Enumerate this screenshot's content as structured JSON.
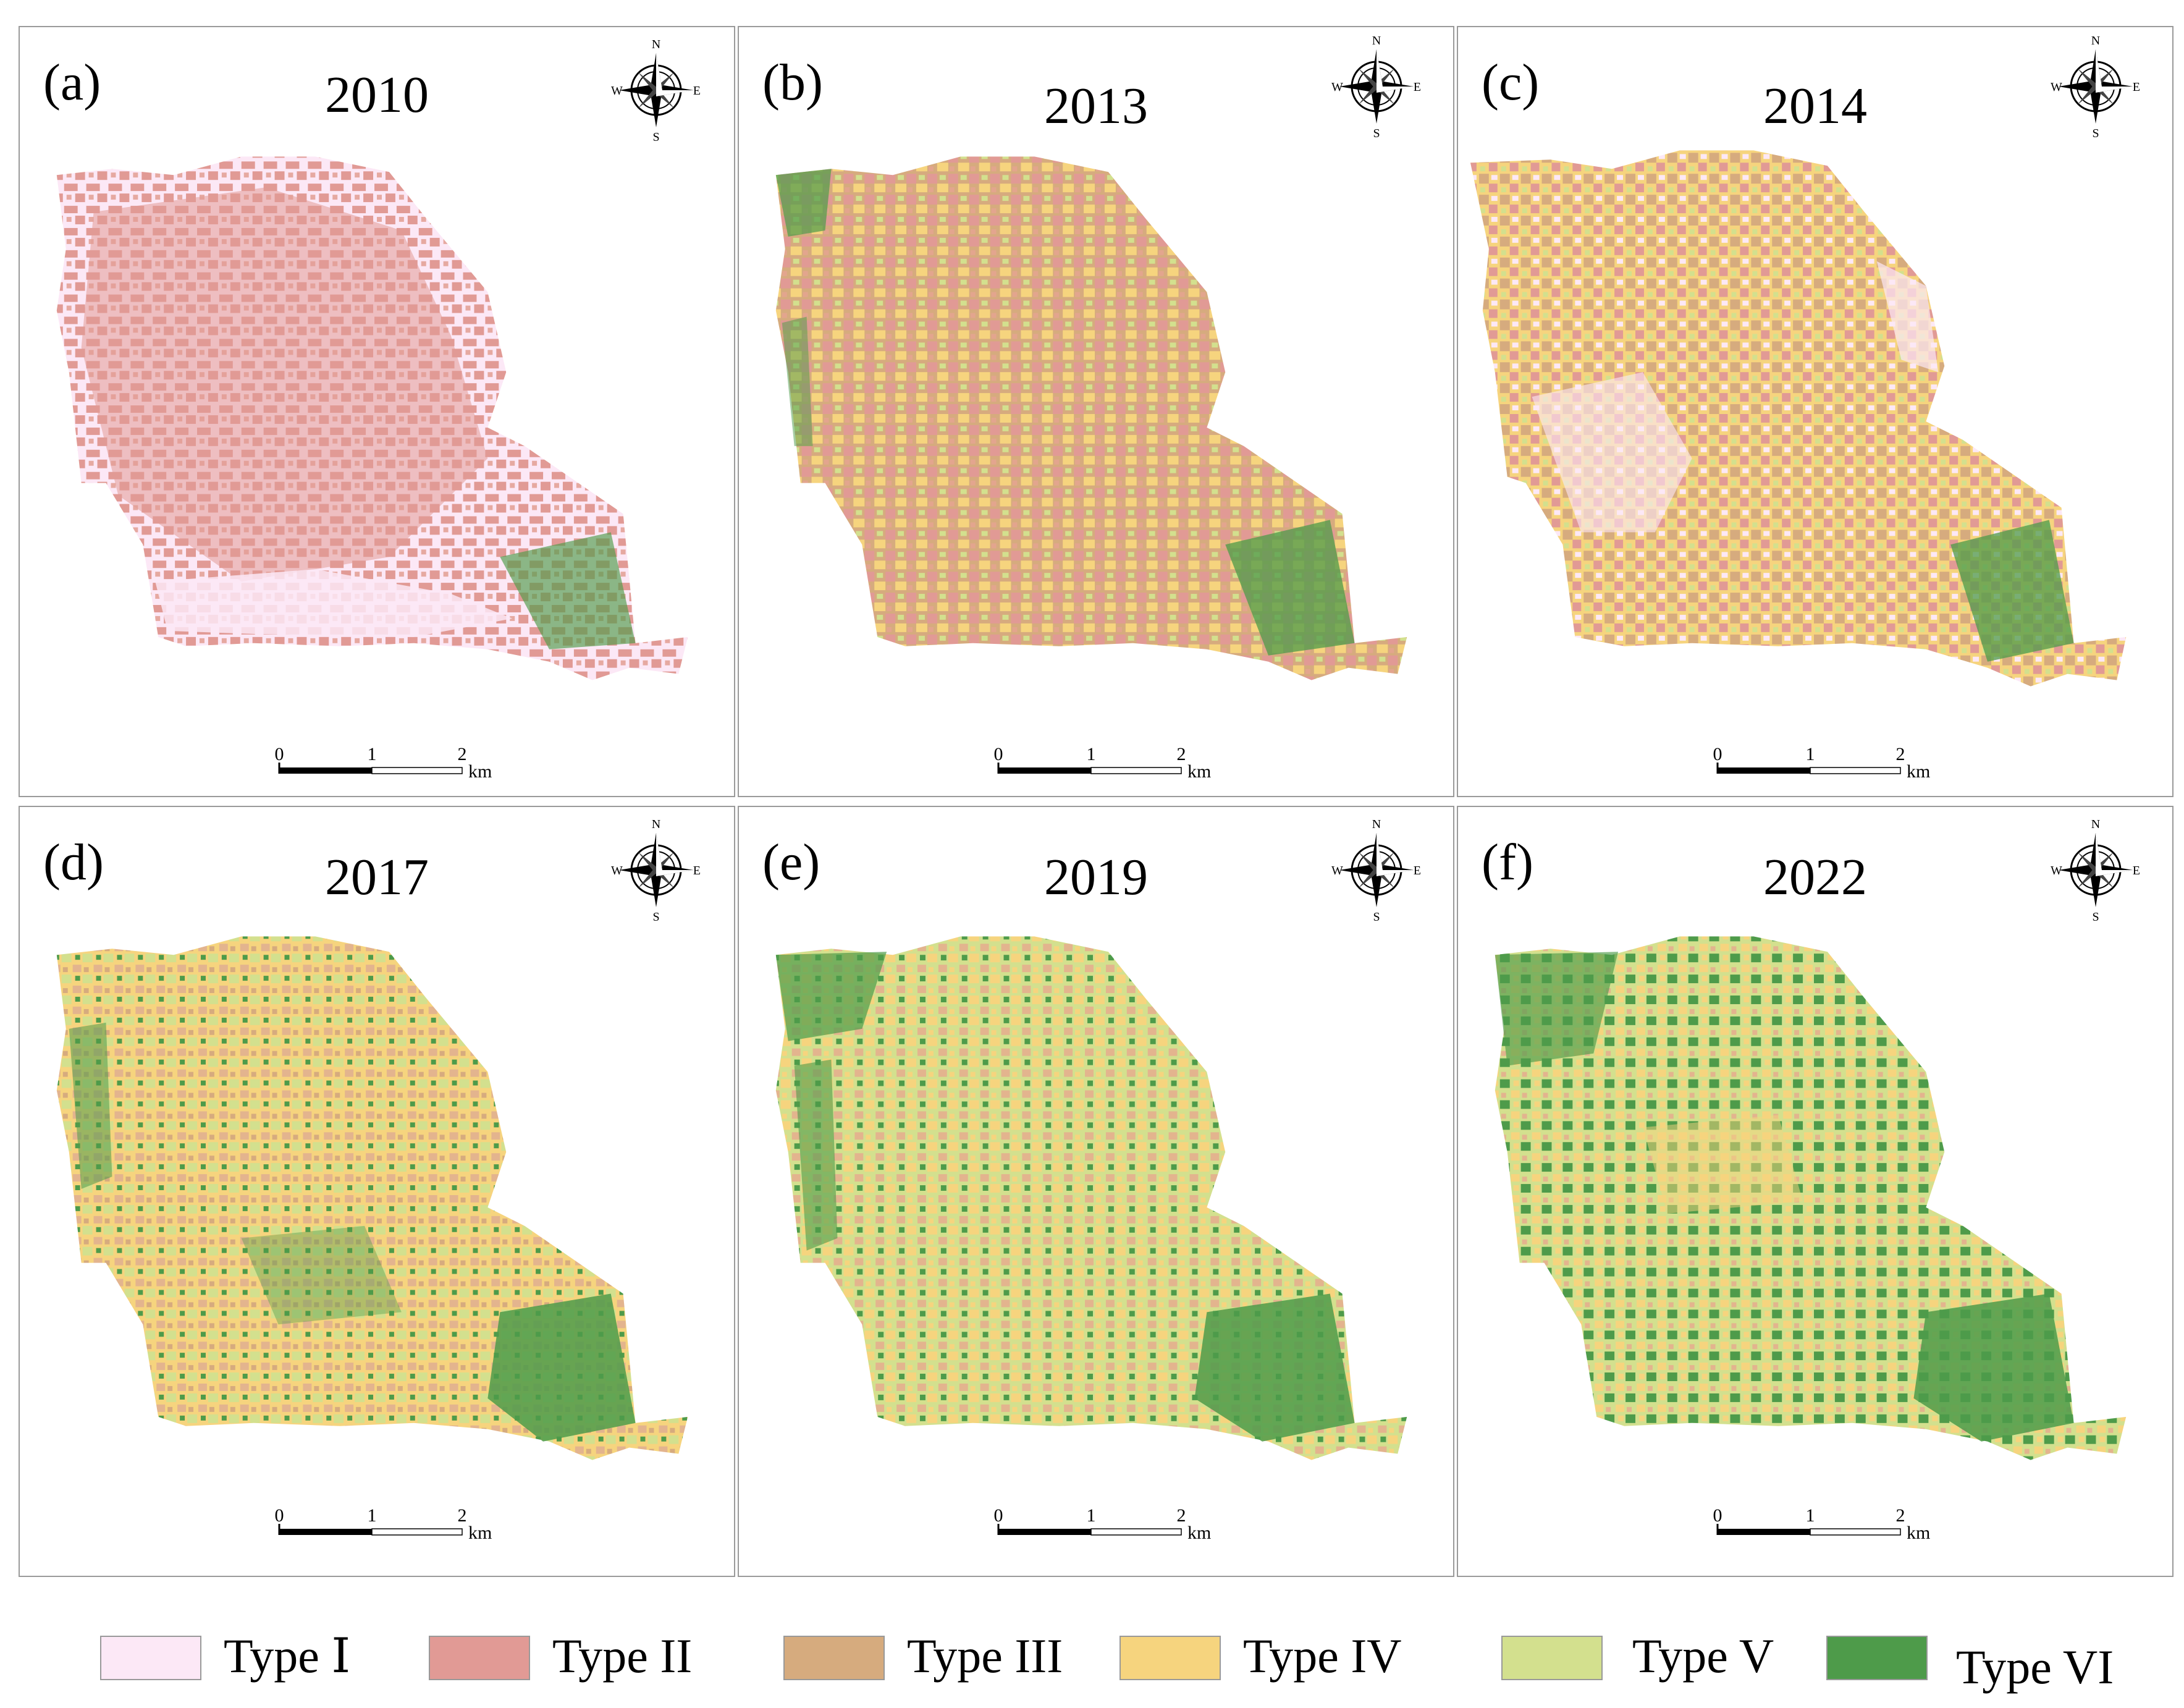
{
  "panels": [
    {
      "letter": "(a)",
      "year": "2010"
    },
    {
      "letter": "(b)",
      "year": "2013"
    },
    {
      "letter": "(c)",
      "year": "2014"
    },
    {
      "letter": "(d)",
      "year": "2017"
    },
    {
      "letter": "(e)",
      "year": "2019"
    },
    {
      "letter": "(f)",
      "year": "2022"
    }
  ],
  "compass": {
    "n": "N",
    "s": "S",
    "e": "E",
    "w": "W"
  },
  "scale": {
    "t0": "0",
    "t1": "1",
    "t2": "2",
    "unit": "km"
  },
  "legend": [
    {
      "label": "Type Ⅰ",
      "color": "#fce8f6"
    },
    {
      "label": "Type II",
      "color": "#e19a95"
    },
    {
      "label": "Type III",
      "color": "#d6ab7e"
    },
    {
      "label": "Type  IV",
      "color": "#f6d47e"
    },
    {
      "label": "Type V",
      "color": "#d3e08e"
    },
    {
      "label": "Type VI",
      "color": "#4e9b4a"
    }
  ]
}
